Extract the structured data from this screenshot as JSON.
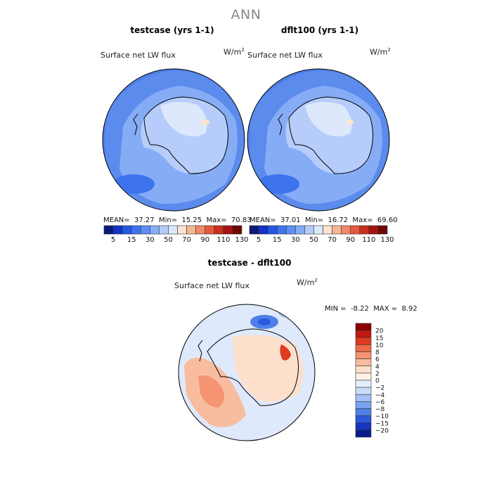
{
  "figure": {
    "title": "ANN"
  },
  "colors": {
    "map_ocean": "#4e7fe6",
    "map_land": "#b6cdfb",
    "coast": "#000000",
    "bar_outline": "#333333"
  },
  "panels": [
    {
      "title": "testcase (yrs 1-1)",
      "variable": "Surface net LW flux",
      "units_base": "W/m",
      "units_sup": "2",
      "stats": {
        "mean_label": "MEAN=",
        "mean": "37.27",
        "min_label": "Min=",
        "min": "15.25",
        "max_label": "Max=",
        "max": "70.83"
      }
    },
    {
      "title": "dflt100 (yrs 1-1)",
      "variable": "Surface net LW flux",
      "units_base": "W/m",
      "units_sup": "2",
      "stats": {
        "mean_label": "MEAN=",
        "mean": "37.01",
        "min_label": "Min=",
        "min": "16.72",
        "max_label": "Max=",
        "max": "69.60"
      }
    }
  ],
  "diff_panel": {
    "title": "testcase - dflt100",
    "variable": "Surface net LW flux",
    "units_base": "W/m",
    "units_sup": "2",
    "stats": {
      "min_label": "MIN =",
      "min": "-8.22",
      "max_label": "MAX =",
      "max": "8.92"
    }
  },
  "chart_data": [
    {
      "type": "heatmap",
      "title": "testcase (yrs 1-1)",
      "projection": "south polar stereographic",
      "colorbar": {
        "orientation": "horizontal",
        "colors": [
          "#0a1a7a",
          "#1232c8",
          "#2457e6",
          "#3d74ee",
          "#5d8ef2",
          "#86acf6",
          "#b3cdfa",
          "#dde8fd",
          "#fde3d0",
          "#f7b595",
          "#f18868",
          "#e45a3e",
          "#cc2e1e",
          "#a41410",
          "#6e0606"
        ],
        "tick_labels": [
          "5",
          "15",
          "30",
          "50",
          "70",
          "90",
          "110",
          "130"
        ]
      },
      "stats": {
        "mean": 37.27,
        "min": 15.25,
        "max": 70.83
      }
    },
    {
      "type": "heatmap",
      "title": "dflt100 (yrs 1-1)",
      "projection": "south polar stereographic",
      "colorbar": {
        "orientation": "horizontal",
        "colors": [
          "#0a1a7a",
          "#1232c8",
          "#2457e6",
          "#3d74ee",
          "#5d8ef2",
          "#86acf6",
          "#b3cdfa",
          "#dde8fd",
          "#fde3d0",
          "#f7b595",
          "#f18868",
          "#e45a3e",
          "#cc2e1e",
          "#a41410",
          "#6e0606"
        ],
        "tick_labels": [
          "5",
          "15",
          "30",
          "50",
          "70",
          "90",
          "110",
          "130"
        ]
      },
      "stats": {
        "mean": 37.01,
        "min": 16.72,
        "max": 69.6
      }
    },
    {
      "type": "heatmap",
      "title": "testcase - dflt100",
      "projection": "south polar stereographic",
      "colorbar": {
        "orientation": "vertical",
        "colors_top_to_bottom": [
          "#8b0000",
          "#c01810",
          "#e03a22",
          "#f06848",
          "#f59472",
          "#f8bd9e",
          "#fce0cc",
          "#fdf2e8",
          "#e6eefc",
          "#c9dbf8",
          "#a4c1f5",
          "#7aa3ef",
          "#4f7fe8",
          "#2a58dc",
          "#1535bc",
          "#0a1c8c"
        ],
        "tick_labels_top_to_bottom": [
          "20",
          "15",
          "10",
          "8",
          "6",
          "4",
          "2",
          "0",
          "−2",
          "−4",
          "−6",
          "−8",
          "−10",
          "−15",
          "−20"
        ]
      },
      "stats": {
        "min": -8.22,
        "max": 8.92
      }
    }
  ]
}
